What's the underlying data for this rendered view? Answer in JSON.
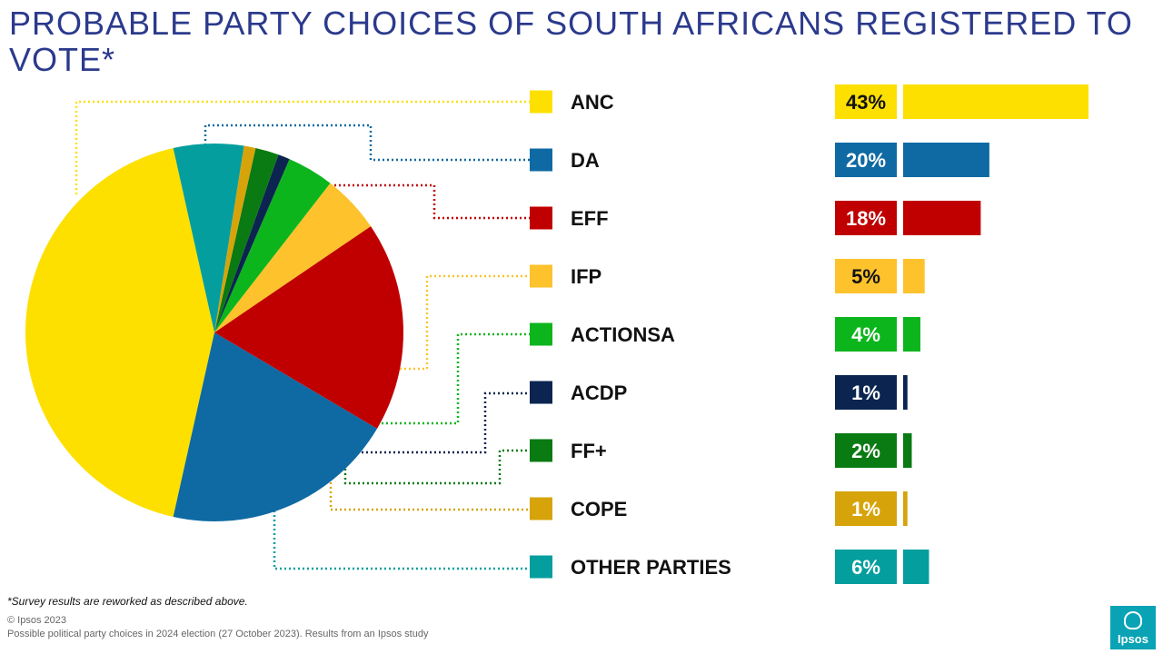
{
  "title": "PROBABLE PARTY CHOICES OF SOUTH AFRICANS REGISTERED TO VOTE*",
  "footnote": "*Survey results are reworked as described above.",
  "copyright": "© Ipsos 2023",
  "source": "Possible political party choices in 2024 election (27 October 2023). Results from an Ipsos study",
  "logo_text": "Ipsos",
  "chart_data": {
    "type": "pie",
    "categories": [
      "ANC",
      "DA",
      "EFF",
      "IFP",
      "ACTIONSA",
      "ACDP",
      "FF+",
      "COPE",
      "OTHER PARTIES"
    ],
    "values": [
      43,
      20,
      18,
      5,
      4,
      1,
      2,
      1,
      6
    ],
    "value_labels": [
      "43%",
      "20%",
      "18%",
      "5%",
      "4%",
      "1%",
      "2%",
      "1%",
      "6%"
    ],
    "colors": [
      "#fde000",
      "#0f6aa3",
      "#c00000",
      "#fdc22c",
      "#0db51c",
      "#0b2450",
      "#0a7a12",
      "#d6a40a",
      "#049e9e"
    ],
    "label_text_colors": [
      "#111111",
      "#ffffff",
      "#ffffff",
      "#111111",
      "#ffffff",
      "#ffffff",
      "#ffffff",
      "#ffffff",
      "#ffffff"
    ],
    "companion_bar_chart": "horizontal bars with percentage labels beside legend",
    "legend_placement": "right"
  }
}
